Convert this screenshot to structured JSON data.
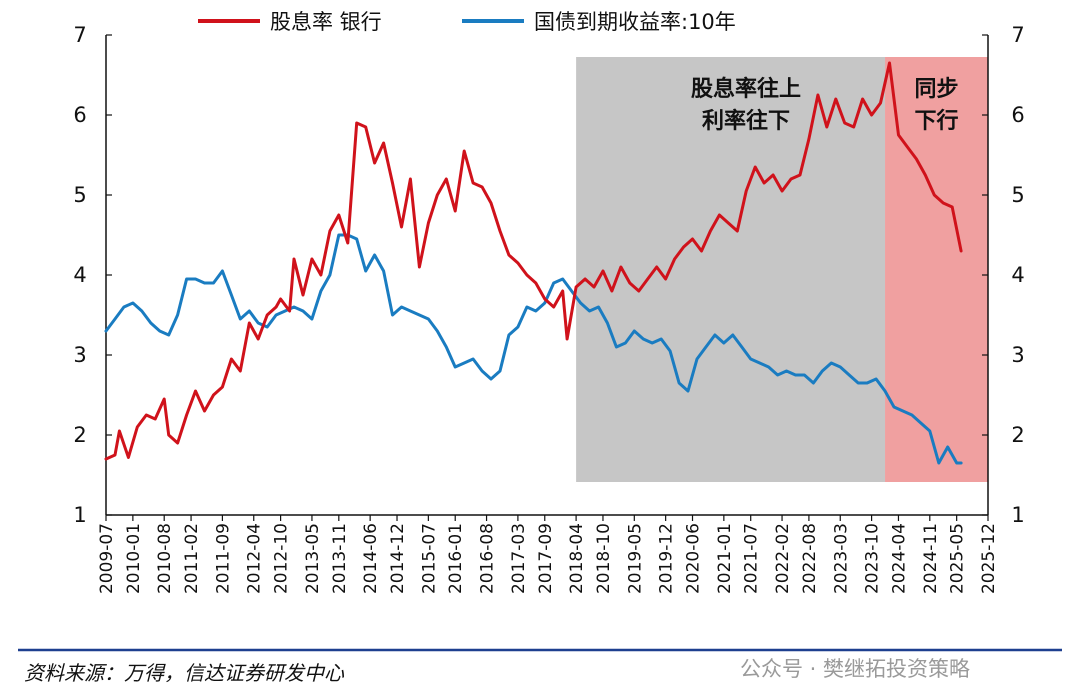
{
  "chart_data": {
    "type": "line",
    "legend": {
      "placement": "top"
    },
    "series": [
      {
        "name": "股息率 银行",
        "color": "#d0121b",
        "axis": "left",
        "values": [
          [
            "2009-07",
            1.7
          ],
          [
            "2009-09",
            1.75
          ],
          [
            "2009-10",
            2.05
          ],
          [
            "2009-12",
            1.72
          ],
          [
            "2010-02",
            2.1
          ],
          [
            "2010-04",
            2.25
          ],
          [
            "2010-06",
            2.2
          ],
          [
            "2010-08",
            2.45
          ],
          [
            "2010-09",
            2.0
          ],
          [
            "2010-11",
            1.9
          ],
          [
            "2011-01",
            2.25
          ],
          [
            "2011-03",
            2.55
          ],
          [
            "2011-05",
            2.3
          ],
          [
            "2011-07",
            2.5
          ],
          [
            "2011-09",
            2.6
          ],
          [
            "2011-11",
            2.95
          ],
          [
            "2012-01",
            2.8
          ],
          [
            "2012-03",
            3.4
          ],
          [
            "2012-05",
            3.2
          ],
          [
            "2012-07",
            3.5
          ],
          [
            "2012-09",
            3.6
          ],
          [
            "2012-10",
            3.7
          ],
          [
            "2012-12",
            3.55
          ],
          [
            "2013-01",
            4.2
          ],
          [
            "2013-03",
            3.75
          ],
          [
            "2013-05",
            4.2
          ],
          [
            "2013-07",
            4.0
          ],
          [
            "2013-09",
            4.55
          ],
          [
            "2013-11",
            4.75
          ],
          [
            "2014-01",
            4.4
          ],
          [
            "2014-03",
            5.9
          ],
          [
            "2014-05",
            5.85
          ],
          [
            "2014-07",
            5.4
          ],
          [
            "2014-09",
            5.65
          ],
          [
            "2014-11",
            5.15
          ],
          [
            "2015-01",
            4.6
          ],
          [
            "2015-03",
            5.2
          ],
          [
            "2015-05",
            4.1
          ],
          [
            "2015-07",
            4.65
          ],
          [
            "2015-09",
            5.0
          ],
          [
            "2015-11",
            5.2
          ],
          [
            "2016-01",
            4.8
          ],
          [
            "2016-03",
            5.55
          ],
          [
            "2016-05",
            5.15
          ],
          [
            "2016-07",
            5.1
          ],
          [
            "2016-09",
            4.9
          ],
          [
            "2016-11",
            4.55
          ],
          [
            "2017-01",
            4.25
          ],
          [
            "2017-03",
            4.15
          ],
          [
            "2017-05",
            4.0
          ],
          [
            "2017-07",
            3.9
          ],
          [
            "2017-09",
            3.7
          ],
          [
            "2017-11",
            3.6
          ],
          [
            "2018-01",
            3.8
          ],
          [
            "2018-02",
            3.2
          ],
          [
            "2018-04",
            3.85
          ],
          [
            "2018-06",
            3.95
          ],
          [
            "2018-08",
            3.85
          ],
          [
            "2018-10",
            4.05
          ],
          [
            "2018-12",
            3.8
          ],
          [
            "2019-02",
            4.1
          ],
          [
            "2019-04",
            3.9
          ],
          [
            "2019-06",
            3.8
          ],
          [
            "2019-08",
            3.95
          ],
          [
            "2019-10",
            4.1
          ],
          [
            "2019-12",
            3.95
          ],
          [
            "2020-02",
            4.2
          ],
          [
            "2020-04",
            4.35
          ],
          [
            "2020-06",
            4.45
          ],
          [
            "2020-08",
            4.3
          ],
          [
            "2020-10",
            4.55
          ],
          [
            "2020-12",
            4.75
          ],
          [
            "2021-02",
            4.65
          ],
          [
            "2021-04",
            4.55
          ],
          [
            "2021-06",
            5.05
          ],
          [
            "2021-08",
            5.35
          ],
          [
            "2021-10",
            5.15
          ],
          [
            "2021-12",
            5.25
          ],
          [
            "2022-02",
            5.05
          ],
          [
            "2022-04",
            5.2
          ],
          [
            "2022-06",
            5.25
          ],
          [
            "2022-08",
            5.7
          ],
          [
            "2022-10",
            6.25
          ],
          [
            "2022-12",
            5.85
          ],
          [
            "2023-02",
            6.2
          ],
          [
            "2023-04",
            5.9
          ],
          [
            "2023-06",
            5.85
          ],
          [
            "2023-08",
            6.2
          ],
          [
            "2023-10",
            6.0
          ],
          [
            "2023-12",
            6.15
          ],
          [
            "2024-02",
            6.65
          ],
          [
            "2024-04",
            5.75
          ],
          [
            "2024-06",
            5.6
          ],
          [
            "2024-08",
            5.45
          ],
          [
            "2024-10",
            5.25
          ],
          [
            "2024-12",
            5.0
          ],
          [
            "2025-02",
            4.9
          ],
          [
            "2025-04",
            4.85
          ],
          [
            "2025-06",
            4.3
          ]
        ]
      },
      {
        "name": "国债到期收益率:10年",
        "color": "#1a7cc1",
        "axis": "left",
        "values": [
          [
            "2009-07",
            3.3
          ],
          [
            "2009-09",
            3.45
          ],
          [
            "2009-11",
            3.6
          ],
          [
            "2010-01",
            3.65
          ],
          [
            "2010-03",
            3.55
          ],
          [
            "2010-05",
            3.4
          ],
          [
            "2010-07",
            3.3
          ],
          [
            "2010-09",
            3.25
          ],
          [
            "2010-11",
            3.5
          ],
          [
            "2011-01",
            3.95
          ],
          [
            "2011-03",
            3.95
          ],
          [
            "2011-05",
            3.9
          ],
          [
            "2011-07",
            3.9
          ],
          [
            "2011-09",
            4.05
          ],
          [
            "2011-11",
            3.75
          ],
          [
            "2012-01",
            3.45
          ],
          [
            "2012-03",
            3.55
          ],
          [
            "2012-05",
            3.4
          ],
          [
            "2012-07",
            3.35
          ],
          [
            "2012-09",
            3.5
          ],
          [
            "2012-11",
            3.55
          ],
          [
            "2013-01",
            3.6
          ],
          [
            "2013-03",
            3.55
          ],
          [
            "2013-05",
            3.45
          ],
          [
            "2013-07",
            3.8
          ],
          [
            "2013-09",
            4.0
          ],
          [
            "2013-11",
            4.5
          ],
          [
            "2014-01",
            4.5
          ],
          [
            "2014-03",
            4.45
          ],
          [
            "2014-05",
            4.05
          ],
          [
            "2014-07",
            4.25
          ],
          [
            "2014-09",
            4.05
          ],
          [
            "2014-11",
            3.5
          ],
          [
            "2015-01",
            3.6
          ],
          [
            "2015-03",
            3.55
          ],
          [
            "2015-05",
            3.5
          ],
          [
            "2015-07",
            3.45
          ],
          [
            "2015-09",
            3.3
          ],
          [
            "2015-11",
            3.1
          ],
          [
            "2016-01",
            2.85
          ],
          [
            "2016-03",
            2.9
          ],
          [
            "2016-05",
            2.95
          ],
          [
            "2016-07",
            2.8
          ],
          [
            "2016-09",
            2.7
          ],
          [
            "2016-11",
            2.8
          ],
          [
            "2017-01",
            3.25
          ],
          [
            "2017-03",
            3.35
          ],
          [
            "2017-05",
            3.6
          ],
          [
            "2017-07",
            3.55
          ],
          [
            "2017-09",
            3.65
          ],
          [
            "2017-11",
            3.9
          ],
          [
            "2018-01",
            3.95
          ],
          [
            "2018-03",
            3.8
          ],
          [
            "2018-05",
            3.65
          ],
          [
            "2018-07",
            3.55
          ],
          [
            "2018-09",
            3.6
          ],
          [
            "2018-11",
            3.4
          ],
          [
            "2019-01",
            3.1
          ],
          [
            "2019-03",
            3.15
          ],
          [
            "2019-05",
            3.3
          ],
          [
            "2019-07",
            3.2
          ],
          [
            "2019-09",
            3.15
          ],
          [
            "2019-11",
            3.2
          ],
          [
            "2020-01",
            3.05
          ],
          [
            "2020-03",
            2.65
          ],
          [
            "2020-05",
            2.55
          ],
          [
            "2020-07",
            2.95
          ],
          [
            "2020-09",
            3.1
          ],
          [
            "2020-11",
            3.25
          ],
          [
            "2021-01",
            3.15
          ],
          [
            "2021-03",
            3.25
          ],
          [
            "2021-05",
            3.1
          ],
          [
            "2021-07",
            2.95
          ],
          [
            "2021-09",
            2.9
          ],
          [
            "2021-11",
            2.85
          ],
          [
            "2022-01",
            2.75
          ],
          [
            "2022-03",
            2.8
          ],
          [
            "2022-05",
            2.75
          ],
          [
            "2022-07",
            2.75
          ],
          [
            "2022-09",
            2.65
          ],
          [
            "2022-11",
            2.8
          ],
          [
            "2023-01",
            2.9
          ],
          [
            "2023-03",
            2.85
          ],
          [
            "2023-05",
            2.75
          ],
          [
            "2023-07",
            2.65
          ],
          [
            "2023-09",
            2.65
          ],
          [
            "2023-11",
            2.7
          ],
          [
            "2024-01",
            2.55
          ],
          [
            "2024-03",
            2.35
          ],
          [
            "2024-05",
            2.3
          ],
          [
            "2024-07",
            2.25
          ],
          [
            "2024-09",
            2.15
          ],
          [
            "2024-11",
            2.05
          ],
          [
            "2025-01",
            1.65
          ],
          [
            "2025-03",
            1.85
          ],
          [
            "2025-05",
            1.65
          ],
          [
            "2025-06",
            1.65
          ]
        ]
      }
    ],
    "x_ticks": [
      "2009-07",
      "2010-01",
      "2010-08",
      "2011-02",
      "2011-09",
      "2012-04",
      "2012-10",
      "2013-05",
      "2013-11",
      "2014-06",
      "2014-12",
      "2015-07",
      "2016-01",
      "2016-08",
      "2017-03",
      "2017-09",
      "2018-04",
      "2018-10",
      "2019-05",
      "2019-12",
      "2020-06",
      "2021-01",
      "2021-07",
      "2022-02",
      "2022-08",
      "2023-03",
      "2023-10",
      "2024-04",
      "2024-11",
      "2025-05",
      "2025-12"
    ],
    "xlim": [
      "2009-07",
      "2025-12"
    ],
    "ylim": [
      1,
      7
    ],
    "y_ticks_left": [
      "7",
      "6",
      "5",
      "4",
      "3",
      "2",
      "1"
    ],
    "y_ticks_right": [
      "7",
      "6",
      "5",
      "4",
      "3",
      "2",
      "1"
    ],
    "regions": [
      {
        "start": "2018-04",
        "end": "2024-01",
        "color": "#c6c6c6",
        "label_lines": [
          "股息率往上",
          "利率往下"
        ]
      },
      {
        "start": "2024-01",
        "end": "2025-12",
        "color": "#f0a0a0",
        "label_lines": [
          "同步",
          "下行"
        ]
      }
    ],
    "grid": false
  },
  "source": "资料来源：万得，信达证券研发中心",
  "watermark": "公众号 · 樊继拓投资策略"
}
